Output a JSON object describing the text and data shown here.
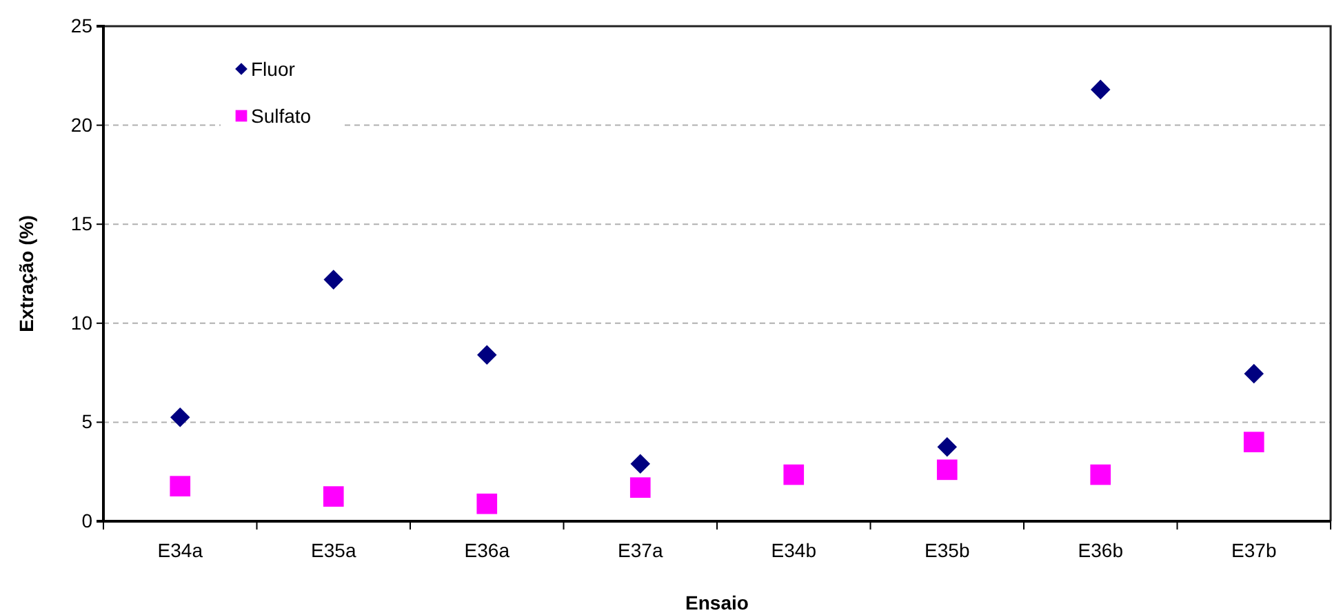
{
  "chart_data": {
    "type": "scatter",
    "xlabel": "Ensaio",
    "ylabel": "Extração (%)",
    "categories": [
      "E34a",
      "E35a",
      "E36a",
      "E37a",
      "E34b",
      "E35b",
      "E36b",
      "E37b"
    ],
    "series": [
      {
        "name": "Fluor",
        "color": "#000080",
        "marker": "diamond",
        "values": [
          5.25,
          12.2,
          8.4,
          2.9,
          null,
          3.75,
          21.8,
          7.45
        ]
      },
      {
        "name": "Sulfato",
        "color": "#ff00ff",
        "marker": "square",
        "values": [
          1.77,
          1.25,
          0.88,
          1.7,
          2.35,
          2.6,
          2.35,
          4.0
        ]
      }
    ],
    "ylim": [
      0,
      25
    ],
    "yticks": [
      0,
      5,
      10,
      15,
      20,
      25
    ],
    "grid": "y",
    "legend": "top left"
  }
}
